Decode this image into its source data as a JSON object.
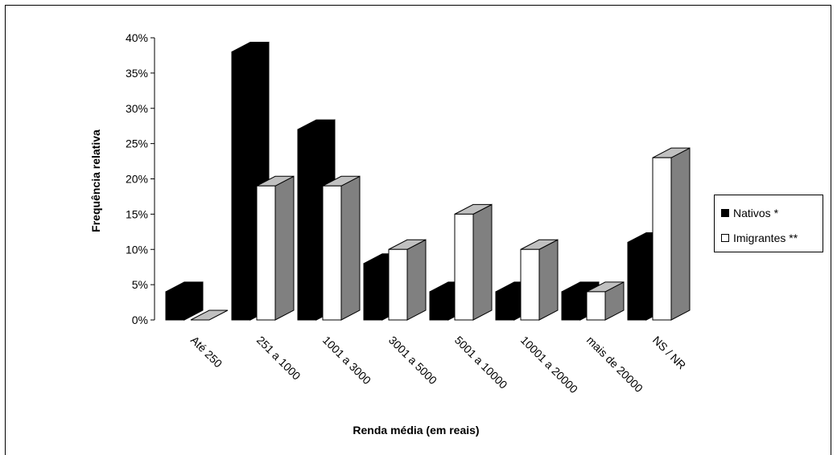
{
  "chart_data": {
    "type": "bar",
    "categories": [
      "Até 250",
      "251 a 1000",
      "1001 a 3000",
      "3001 a 5000",
      "5001 a 10000",
      "10001 a 20000",
      "mais de 20000",
      "NS / NR"
    ],
    "series": [
      {
        "name": "Nativos *",
        "values": [
          4,
          38,
          27,
          8,
          4,
          4,
          4,
          11
        ],
        "color": "#000000"
      },
      {
        "name": "Imigrantes **",
        "values": [
          0,
          19,
          19,
          10,
          15,
          10,
          4,
          23
        ],
        "color": "#ffffff"
      }
    ],
    "yticks": [
      "0%",
      "5%",
      "10%",
      "15%",
      "20%",
      "25%",
      "30%",
      "35%",
      "40%"
    ],
    "ylim": [
      0,
      40
    ],
    "xlabel": "Renda média (em reais)",
    "ylabel": "Frequência relativa",
    "legend_position": "right",
    "colors": {
      "nativos": "#000000",
      "imigrantes_face": "#ffffff",
      "imigrantes_top": "#c0c0c0",
      "imigrantes_side": "#808080"
    }
  }
}
